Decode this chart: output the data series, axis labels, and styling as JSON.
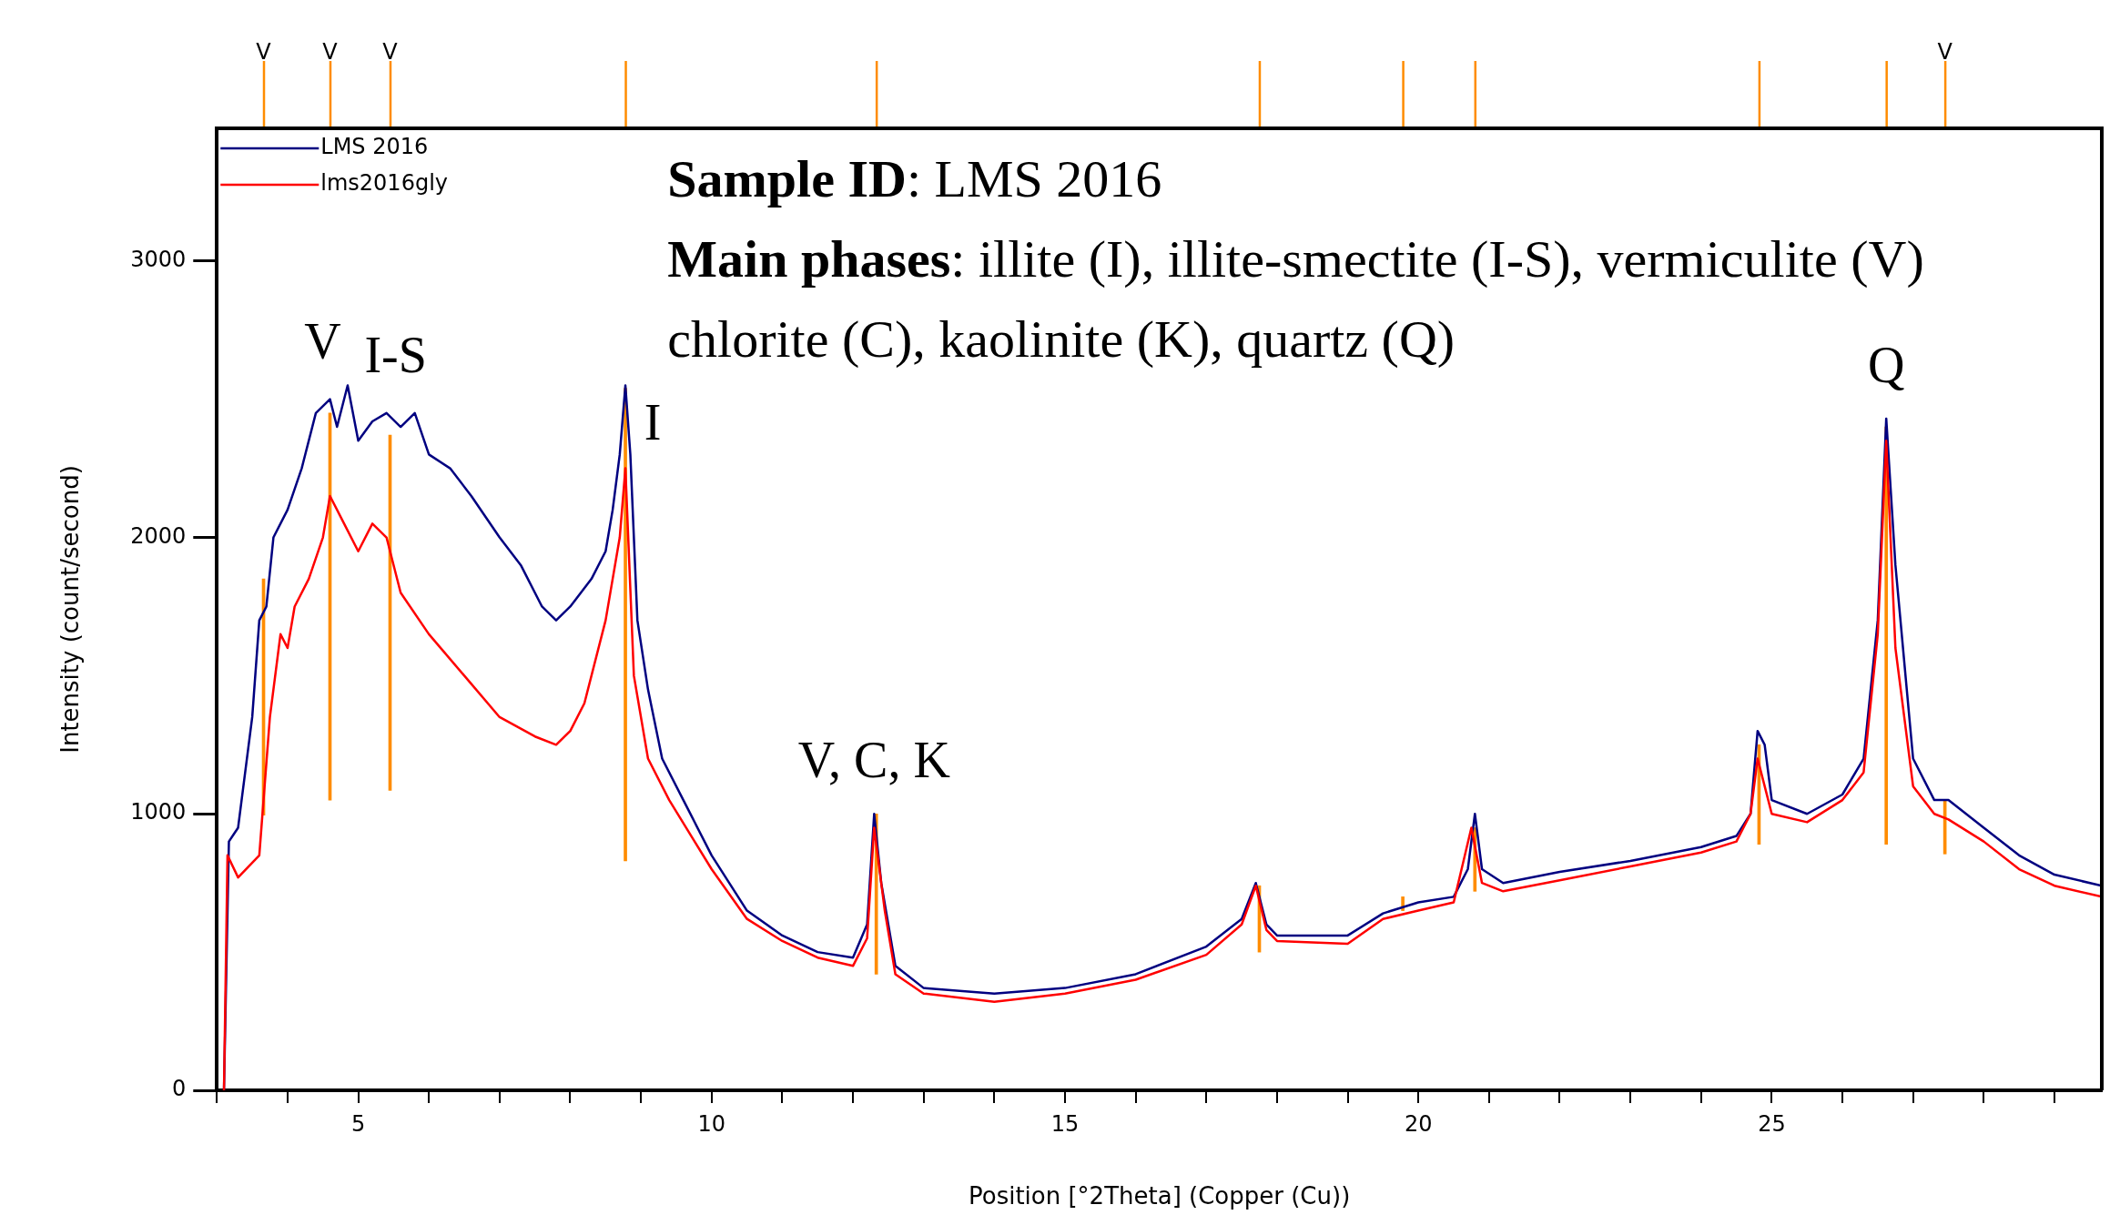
{
  "chart_data": {
    "type": "line",
    "xlabel": "Position [°2Theta] (Copper (Cu))",
    "ylabel": "Intensity (count/second)",
    "legend": "top left",
    "xlim": [
      3,
      29.67
    ],
    "ylim": [
      0,
      3480
    ],
    "xticks": [
      {
        "value": 3,
        "label": null
      },
      {
        "value": 4,
        "label": null
      },
      5,
      {
        "value": 6,
        "label": null
      },
      {
        "value": 7,
        "label": null
      },
      {
        "value": 8,
        "label": null
      },
      {
        "value": 9,
        "label": null
      },
      10,
      {
        "value": 11,
        "label": null
      },
      {
        "value": 12,
        "label": null
      },
      {
        "value": 13,
        "label": null
      },
      {
        "value": 14,
        "label": null
      },
      15,
      {
        "value": 16,
        "label": null
      },
      {
        "value": 17,
        "label": null
      },
      {
        "value": 18,
        "label": null
      },
      {
        "value": 19,
        "label": null
      },
      20,
      {
        "value": 21,
        "label": null
      },
      {
        "value": 22,
        "label": null
      },
      {
        "value": 23,
        "label": null
      },
      {
        "value": 24,
        "label": null
      },
      25,
      {
        "value": 26,
        "label": null
      },
      {
        "value": 27,
        "label": null
      },
      {
        "value": 28,
        "label": null
      },
      {
        "value": 29,
        "label": null
      }
    ],
    "yticks": [
      0,
      1000,
      2000,
      3000
    ],
    "series": [
      {
        "name": "LMS 2016",
        "color": "#000080",
        "x": [
          3.1,
          3.17,
          3.3,
          3.5,
          3.6,
          3.7,
          3.8,
          4.0,
          4.2,
          4.4,
          4.6,
          4.7,
          4.85,
          5.0,
          5.2,
          5.4,
          5.6,
          5.8,
          6.0,
          6.3,
          6.6,
          7.0,
          7.3,
          7.6,
          7.8,
          8.0,
          8.3,
          8.5,
          8.6,
          8.7,
          8.78,
          8.85,
          8.95,
          9.1,
          9.3,
          9.6,
          10.0,
          10.5,
          11.0,
          11.5,
          12.0,
          12.2,
          12.3,
          12.4,
          12.6,
          13.0,
          14.0,
          15.0,
          16.0,
          17.0,
          17.5,
          17.7,
          17.85,
          18.0,
          19.0,
          19.5,
          20.0,
          20.5,
          20.7,
          20.8,
          20.9,
          21.2,
          22,
          23,
          24,
          24.5,
          24.7,
          24.8,
          24.9,
          25.0,
          25.5,
          26.0,
          26.3,
          26.5,
          26.62,
          26.75,
          27.0,
          27.3,
          27.5,
          28,
          28.5,
          29,
          29.67
        ],
        "values": [
          0,
          900,
          950,
          1350,
          1700,
          1750,
          2000,
          2100,
          2250,
          2450,
          2500,
          2400,
          2550,
          2350,
          2420,
          2450,
          2400,
          2450,
          2300,
          2250,
          2150,
          2000,
          1900,
          1750,
          1700,
          1750,
          1850,
          1950,
          2100,
          2300,
          2550,
          2300,
          1700,
          1450,
          1200,
          1050,
          850,
          650,
          560,
          500,
          480,
          600,
          1000,
          750,
          450,
          370,
          350,
          370,
          420,
          520,
          620,
          750,
          600,
          560,
          560,
          640,
          680,
          700,
          800,
          1000,
          800,
          750,
          790,
          830,
          880,
          920,
          1000,
          1300,
          1250,
          1050,
          1000,
          1070,
          1200,
          1700,
          2430,
          1900,
          1200,
          1050,
          1050,
          950,
          850,
          780,
          740
        ]
      },
      {
        "name": "lms2016gly",
        "color": "#ff0000",
        "x": [
          3.1,
          3.15,
          3.3,
          3.6,
          3.75,
          3.9,
          4.0,
          4.1,
          4.3,
          4.5,
          4.6,
          4.8,
          5.0,
          5.2,
          5.4,
          5.6,
          6.0,
          6.5,
          7.0,
          7.5,
          7.8,
          8.0,
          8.2,
          8.5,
          8.7,
          8.78,
          8.9,
          9.1,
          9.4,
          10.0,
          10.5,
          11,
          11.5,
          12.0,
          12.2,
          12.3,
          12.45,
          12.6,
          13,
          14,
          15,
          16,
          17,
          17.5,
          17.7,
          17.85,
          18,
          19,
          19.5,
          20,
          20.5,
          20.75,
          20.9,
          21.2,
          22,
          23,
          24,
          24.5,
          24.7,
          24.8,
          24.9,
          25.0,
          25.5,
          26.0,
          26.3,
          26.5,
          26.62,
          26.75,
          27.0,
          27.3,
          27.5,
          28,
          28.5,
          29,
          29.67
        ],
        "values": [
          0,
          850,
          770,
          850,
          1350,
          1650,
          1600,
          1750,
          1850,
          2000,
          2150,
          2050,
          1950,
          2050,
          2000,
          1800,
          1650,
          1500,
          1350,
          1280,
          1250,
          1300,
          1400,
          1700,
          2000,
          2250,
          1500,
          1200,
          1050,
          800,
          620,
          540,
          480,
          450,
          550,
          950,
          650,
          420,
          350,
          320,
          350,
          400,
          490,
          600,
          740,
          580,
          540,
          530,
          620,
          650,
          680,
          950,
          750,
          720,
          760,
          810,
          860,
          900,
          1000,
          1200,
          1100,
          1000,
          970,
          1050,
          1150,
          1650,
          2350,
          1600,
          1100,
          1000,
          980,
          900,
          800,
          740,
          700
        ]
      },
      {
        "type": "bar",
        "color": "#ff8c00",
        "x": [
          3.66,
          4.6,
          5.45,
          8.78,
          12.33,
          17.75,
          19.78,
          20.8,
          24.82,
          26.62,
          27.45
        ],
        "base": [
          995,
          1050,
          1085,
          830,
          420,
          500,
          650,
          720,
          890,
          890,
          855
        ],
        "values": [
          855,
          1400,
          1285,
          1710,
          580,
          240,
          50,
          230,
          360,
          1510,
          195
        ]
      }
    ],
    "annotations": [
      "Sample ID: LMS 2016",
      "Main phases: illite (I), illite-smectite (I-S), vermiculite (V)",
      "chlorite (C), kaolinite (K), quartz (Q)",
      {
        "text": "V",
        "x": 4.6,
        "y": 2500
      },
      {
        "text": "I-S",
        "x": 5.4,
        "y": 2450
      },
      {
        "text": "I",
        "x": 8.78,
        "y": 2550
      },
      {
        "text": "V, C, K",
        "x": 12.3,
        "y": 1000
      },
      {
        "text": "Q",
        "x": 26.62,
        "y": 2430
      },
      {
        "text": "V",
        "x": 3.66
      },
      {
        "text": "V",
        "x": 4.6
      },
      {
        "text": "V",
        "x": 5.45
      },
      {
        "text": "V",
        "x": 27.45
      }
    ]
  }
}
